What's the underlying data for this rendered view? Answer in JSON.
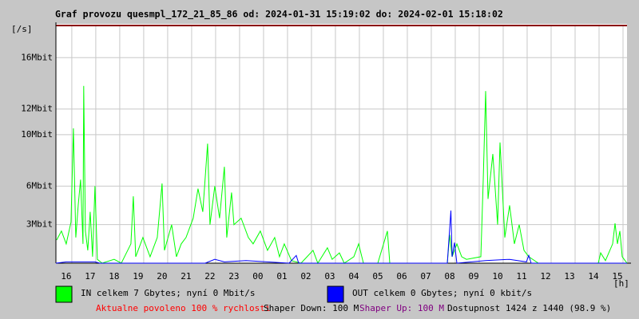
{
  "chart_data": {
    "type": "line",
    "title": "Graf provozu quesmpl_172_21_85_86 od: 2024-01-31 15:19:02 do: 2024-02-01 15:18:02",
    "y_label": "[/s]",
    "x_label": "[h]",
    "categories": [
      "16",
      "17",
      "18",
      "19",
      "20",
      "21",
      "22",
      "23",
      "00",
      "01",
      "02",
      "03",
      "04",
      "05",
      "06",
      "07",
      "08",
      "09",
      "10",
      "11",
      "12",
      "13",
      "14",
      "15"
    ],
    "xlim": [
      -0.43,
      23.4
    ],
    "ylim": [
      0,
      18.5
    ],
    "yticks": [
      {
        "value": 3,
        "label": "3Mbit"
      },
      {
        "value": 6,
        "label": "6Mbit"
      },
      {
        "value": 10,
        "label": "10Mbit"
      },
      {
        "value": 12,
        "label": "12Mbit"
      },
      {
        "value": 16,
        "label": "16Mbit"
      }
    ],
    "grid": true,
    "series": [
      {
        "name": "IN celkem 7 Gbytes; nyní 0 Mbit/s",
        "color": "#00ff00",
        "x": [
          -0.4,
          -0.2,
          0,
          0.2,
          0.3,
          0.4,
          0.5,
          0.6,
          0.7,
          0.73,
          0.8,
          0.9,
          1.0,
          1.1,
          1.2,
          1.3,
          1.5,
          2,
          2.3,
          2.7,
          2.8,
          2.9,
          3.2,
          3.5,
          3.8,
          4.0,
          4.1,
          4.4,
          4.6,
          4.8,
          5.0,
          5.3,
          5.5,
          5.7,
          5.9,
          6.0,
          6.2,
          6.4,
          6.6,
          6.7,
          6.9,
          7.0,
          7.3,
          7.6,
          7.8,
          8.1,
          8.4,
          8.7,
          8.9,
          9.1,
          9.4,
          9.8,
          10.3,
          10.5,
          10.9,
          11.1,
          11.4,
          11.6,
          12.0,
          12.2,
          12.4,
          13.0,
          13.4,
          13.5,
          14.5,
          15.9,
          16.0,
          16.1,
          16.3,
          16.5,
          16.7,
          17.3,
          17.4,
          17.5,
          17.6,
          17.8,
          18.0,
          18.1,
          18.3,
          18.5,
          18.7,
          18.9,
          19.1,
          19.3,
          19.7,
          20.5,
          22.2,
          22.3,
          22.5,
          22.8,
          22.9,
          23.0,
          23.1,
          23.2,
          23.4
        ],
        "values": [
          1.8,
          2.5,
          1.5,
          3.2,
          10.5,
          2,
          4.5,
          6.5,
          1.5,
          13.8,
          2.5,
          1,
          4,
          0.5,
          6,
          0.3,
          0,
          0.3,
          0,
          1.5,
          5.2,
          0.5,
          2,
          0.5,
          2,
          6.2,
          1,
          3,
          0.5,
          1.5,
          2,
          3.5,
          5.8,
          4,
          9.3,
          3,
          6,
          3.5,
          7.5,
          2,
          5.5,
          3,
          3.5,
          2,
          1.5,
          2.5,
          1,
          2,
          0.5,
          1.5,
          0.2,
          0,
          1,
          0,
          1.2,
          0.3,
          0.8,
          0,
          0.5,
          1.5,
          0,
          0,
          2.5,
          0,
          0,
          0,
          2.2,
          0.5,
          1.5,
          0.5,
          0.3,
          0.5,
          6.5,
          13.4,
          5,
          8.5,
          3,
          9.4,
          2,
          4.5,
          1.5,
          3,
          1,
          0.5,
          0,
          0,
          0,
          0.8,
          0.2,
          1.5,
          3.1,
          1.5,
          2.5,
          0.5,
          0
        ]
      },
      {
        "name": "OUT celkem 0 Gbytes; nyní 0 kbit/s",
        "color": "#0000ff",
        "x": [
          -0.43,
          0,
          1.2,
          1.4,
          5.8,
          6.2,
          6.6,
          7.5,
          9.3,
          9.6,
          9.7,
          15.9,
          16.05,
          16.1,
          16.2,
          16.3,
          17.5,
          18.5,
          19.2,
          19.3,
          19.4,
          23.4
        ],
        "values": [
          0,
          0.1,
          0.1,
          0,
          0,
          0.3,
          0.1,
          0.2,
          0,
          0.6,
          0,
          0,
          4.1,
          0.5,
          1.6,
          0,
          0.2,
          0.3,
          0.1,
          0.6,
          0,
          0
        ]
      }
    ],
    "footer": [
      {
        "text": "Aktualne povoleno 100 % rychlosti",
        "color": "#ff0000"
      },
      {
        "text": "Shaper Down: 100 M",
        "color": "#000000"
      },
      {
        "text": "Shaper Up: 100 M",
        "color": "#800080"
      },
      {
        "text": "Dostupnost 1424 z 1440 (98.9 %)",
        "color": "#000000"
      }
    ]
  }
}
